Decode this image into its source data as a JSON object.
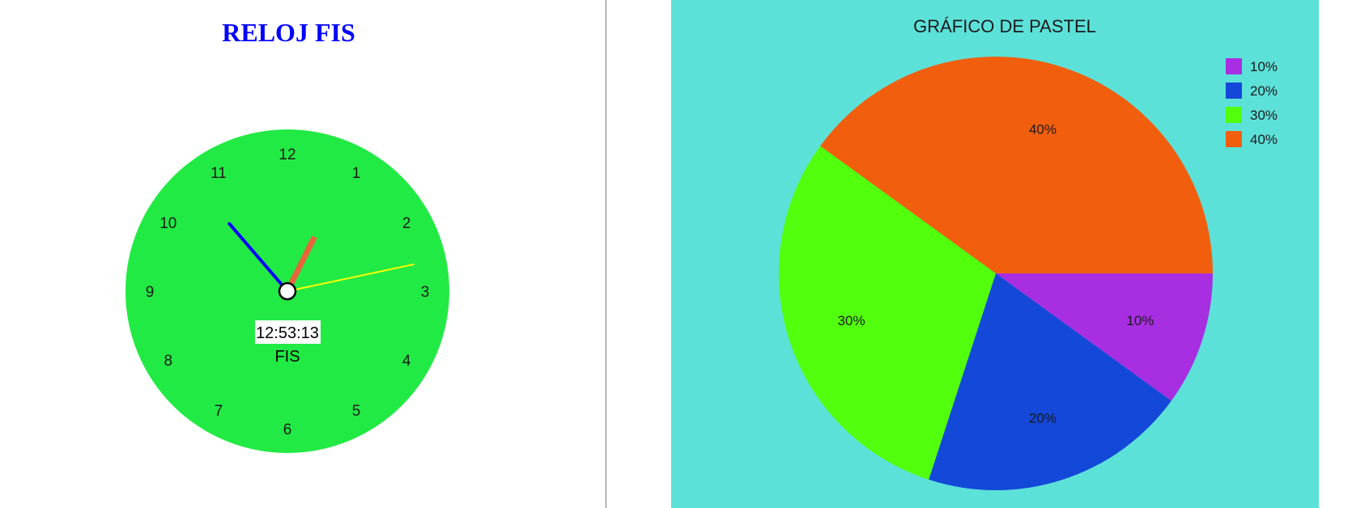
{
  "clock": {
    "title": "RELOJ FIS",
    "numbers": [
      "12",
      "1",
      "2",
      "3",
      "4",
      "5",
      "6",
      "7",
      "8",
      "9",
      "10",
      "11"
    ],
    "time": "12:53:13",
    "brand": "FIS",
    "colors": {
      "face": "#22ea44",
      "hour": "#e8643a",
      "minute": "#0000ff",
      "second": "#ffff00"
    }
  },
  "chart_data": {
    "type": "pie",
    "title": "GRÁFICO DE PASTEL",
    "legend_position": "top-right",
    "slices": [
      {
        "label": "10%",
        "value": 10,
        "color": "#a82ee2"
      },
      {
        "label": "20%",
        "value": 20,
        "color": "#1448d8"
      },
      {
        "label": "30%",
        "value": 30,
        "color": "#52ff0c"
      },
      {
        "label": "40%",
        "value": 40,
        "color": "#f15f0e"
      }
    ]
  }
}
